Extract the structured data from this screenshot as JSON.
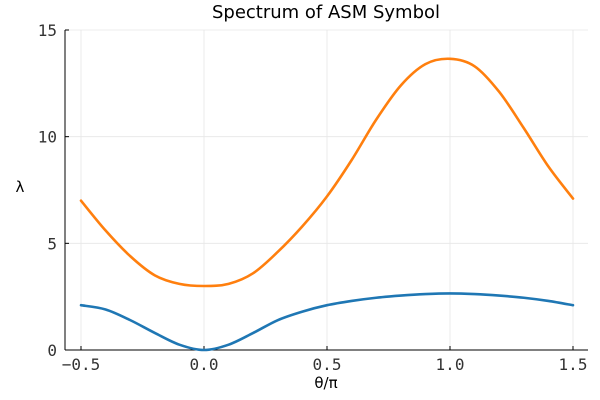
{
  "chart_data": {
    "type": "line",
    "title": "Spectrum of ASM Symbol",
    "xlabel": "θ/π",
    "ylabel": "λ",
    "xlim": [
      -0.5,
      1.5
    ],
    "ylim": [
      0,
      15
    ],
    "xticks": [
      -0.5,
      0.0,
      0.5,
      1.0,
      1.5
    ],
    "xtick_labels": [
      "−0.5",
      "0.0",
      "0.5",
      "1.0",
      "1.5"
    ],
    "yticks": [
      0,
      5,
      10,
      15
    ],
    "ytick_labels": [
      "0",
      "5",
      "10",
      "15"
    ],
    "grid": true,
    "legend": "none",
    "series": [
      {
        "color": "#1f77b4",
        "x": [
          -0.5,
          -0.4,
          -0.3,
          -0.2,
          -0.1,
          0.0,
          0.1,
          0.2,
          0.3,
          0.4,
          0.5,
          0.6,
          0.7,
          0.8,
          0.9,
          1.0,
          1.1,
          1.2,
          1.3,
          1.4,
          1.5
        ],
        "y": [
          2.1,
          1.9,
          1.4,
          0.8,
          0.25,
          0.0,
          0.25,
          0.8,
          1.4,
          1.8,
          2.1,
          2.3,
          2.45,
          2.55,
          2.62,
          2.65,
          2.62,
          2.55,
          2.45,
          2.3,
          2.1
        ]
      },
      {
        "color": "#ff7f0e",
        "x": [
          -0.5,
          -0.4,
          -0.3,
          -0.2,
          -0.1,
          0.0,
          0.1,
          0.2,
          0.3,
          0.4,
          0.5,
          0.6,
          0.7,
          0.8,
          0.9,
          1.0,
          1.1,
          1.2,
          1.3,
          1.4,
          1.5
        ],
        "y": [
          7.0,
          5.6,
          4.4,
          3.5,
          3.1,
          3.0,
          3.1,
          3.6,
          4.6,
          5.8,
          7.2,
          8.9,
          10.8,
          12.4,
          13.4,
          13.65,
          13.3,
          12.1,
          10.4,
          8.6,
          7.1
        ]
      }
    ]
  }
}
